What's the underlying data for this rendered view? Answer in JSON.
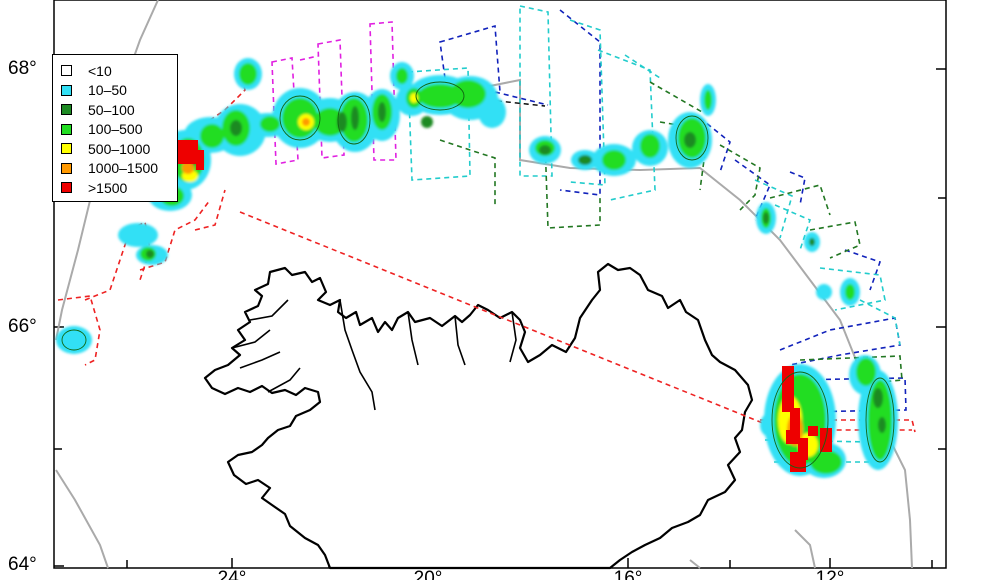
{
  "map": {
    "y_axis": {
      "ticks": [
        {
          "label": "68°",
          "value": 68
        },
        {
          "label": "66°",
          "value": 66
        },
        {
          "label": "64°",
          "value": 64
        }
      ]
    },
    "x_axis": {
      "ticks": [
        {
          "label": "24°",
          "value": -24
        },
        {
          "label": "20°",
          "value": -20
        },
        {
          "label": "16°",
          "value": -16
        },
        {
          "label": "12°",
          "value": -12
        }
      ]
    },
    "legend": {
      "items": [
        {
          "label": "<10",
          "color": "#ffffff"
        },
        {
          "label": "10–50",
          "color": "#33e0f5"
        },
        {
          "label": "50–100",
          "color": "#1d8a23"
        },
        {
          "label": "100–500",
          "color": "#22dd22"
        },
        {
          "label": "500–1000",
          "color": "#ffff00"
        },
        {
          "label": "1000–1500",
          "color": "#ff9900"
        },
        {
          "label": ">1500",
          "color": "#ee0000"
        }
      ]
    },
    "colors": {
      "survey_red": "#ee2222",
      "survey_magenta": "#e020e0",
      "survey_blue": "#1122bb",
      "survey_cyan": "#22cccc",
      "survey_green": "#227722",
      "land_outline": "#000000",
      "shelf_contour": "#aaaaaa"
    }
  }
}
